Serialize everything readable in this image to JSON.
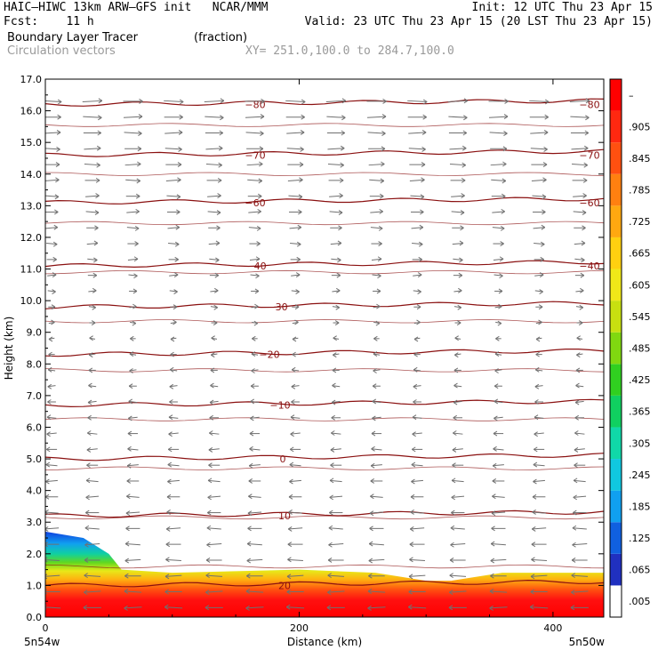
{
  "header": {
    "line1_left": "HAIC–HIWC 13km ARW–GFS init   NCAR/MMM",
    "line1_right": "Init: 12 UTC Thu 23 Apr 15",
    "line2_left": "Fcst:    11 h",
    "line2_right": "Valid: 23 UTC Thu 23 Apr 15 (20 LST Thu 23 Apr 15)",
    "line3_left": "Boundary Layer Tracer",
    "line3_unit": "(fraction)",
    "line4_left": "Circulation vectors",
    "line4_xy": "XY= 251.0,100.0 to 284.7,100.0"
  },
  "chart_data": {
    "type": "cross-section",
    "xlabel": "Distance (km)",
    "ylabel": "Height (km)",
    "xlim": [
      0,
      440
    ],
    "ylim": [
      0,
      17
    ],
    "x_ticks": [
      0,
      200,
      400
    ],
    "x_tick_labels": [
      "0",
      "200",
      "400"
    ],
    "y_ticks": [
      0,
      1,
      2,
      3,
      4,
      5,
      6,
      7,
      8,
      9,
      10,
      11,
      12,
      13,
      14,
      15,
      16,
      17
    ],
    "y_tick_labels": [
      "0.0",
      "1.0",
      "2.0",
      "3.0",
      "4.0",
      "5.0",
      "6.0",
      "7.0",
      "8.0",
      "9.0",
      "10.0",
      "11.0",
      "12.0",
      "13.0",
      "14.0",
      "15.0",
      "16.0",
      "17.0"
    ],
    "endpoint_labels": {
      "left": "5n54w",
      "right": "5n50w"
    },
    "colorbar": {
      "labels": [
        ".005",
        ".065",
        ".125",
        ".185",
        ".245",
        ".305",
        ".365",
        ".425",
        ".485",
        ".545",
        ".605",
        ".665",
        ".725",
        ".785",
        ".845",
        ".905",
        "–"
      ],
      "colors": [
        "#ffffff",
        "#2030c0",
        "#1060e0",
        "#10a0f0",
        "#10c8e0",
        "#10d8a8",
        "#10d060",
        "#30d020",
        "#80d810",
        "#c8e010",
        "#f0e818",
        "#ffd010",
        "#ffa810",
        "#ff8010",
        "#ff5010",
        "#ff2810",
        "#ff0000"
      ]
    },
    "temperature_contours": [
      {
        "label": "20",
        "z": 1.0
      },
      {
        "label": "10",
        "z": 3.2
      },
      {
        "label": "0",
        "z": 5.0
      },
      {
        "label": "−10",
        "z": 6.7
      },
      {
        "label": "−20",
        "z": 8.3
      },
      {
        "label": "−30",
        "z": 9.8
      },
      {
        "label": "−40",
        "z": 11.1
      },
      {
        "label": "−60",
        "z": 13.1
      },
      {
        "label": "−70",
        "z": 14.6
      },
      {
        "label": "−80",
        "z": 16.2
      }
    ],
    "tracer_top_km": {
      "x": [
        0,
        30,
        50,
        60,
        100,
        200,
        260,
        300,
        320,
        360,
        440
      ],
      "top": [
        2.7,
        2.5,
        2.0,
        1.5,
        1.4,
        1.5,
        1.4,
        1.15,
        1.15,
        1.4,
        1.4
      ]
    },
    "vectors": {
      "upper_wind": "west-to-east",
      "lower_wind": "east-to-west",
      "reversal_km": 9.0
    }
  }
}
